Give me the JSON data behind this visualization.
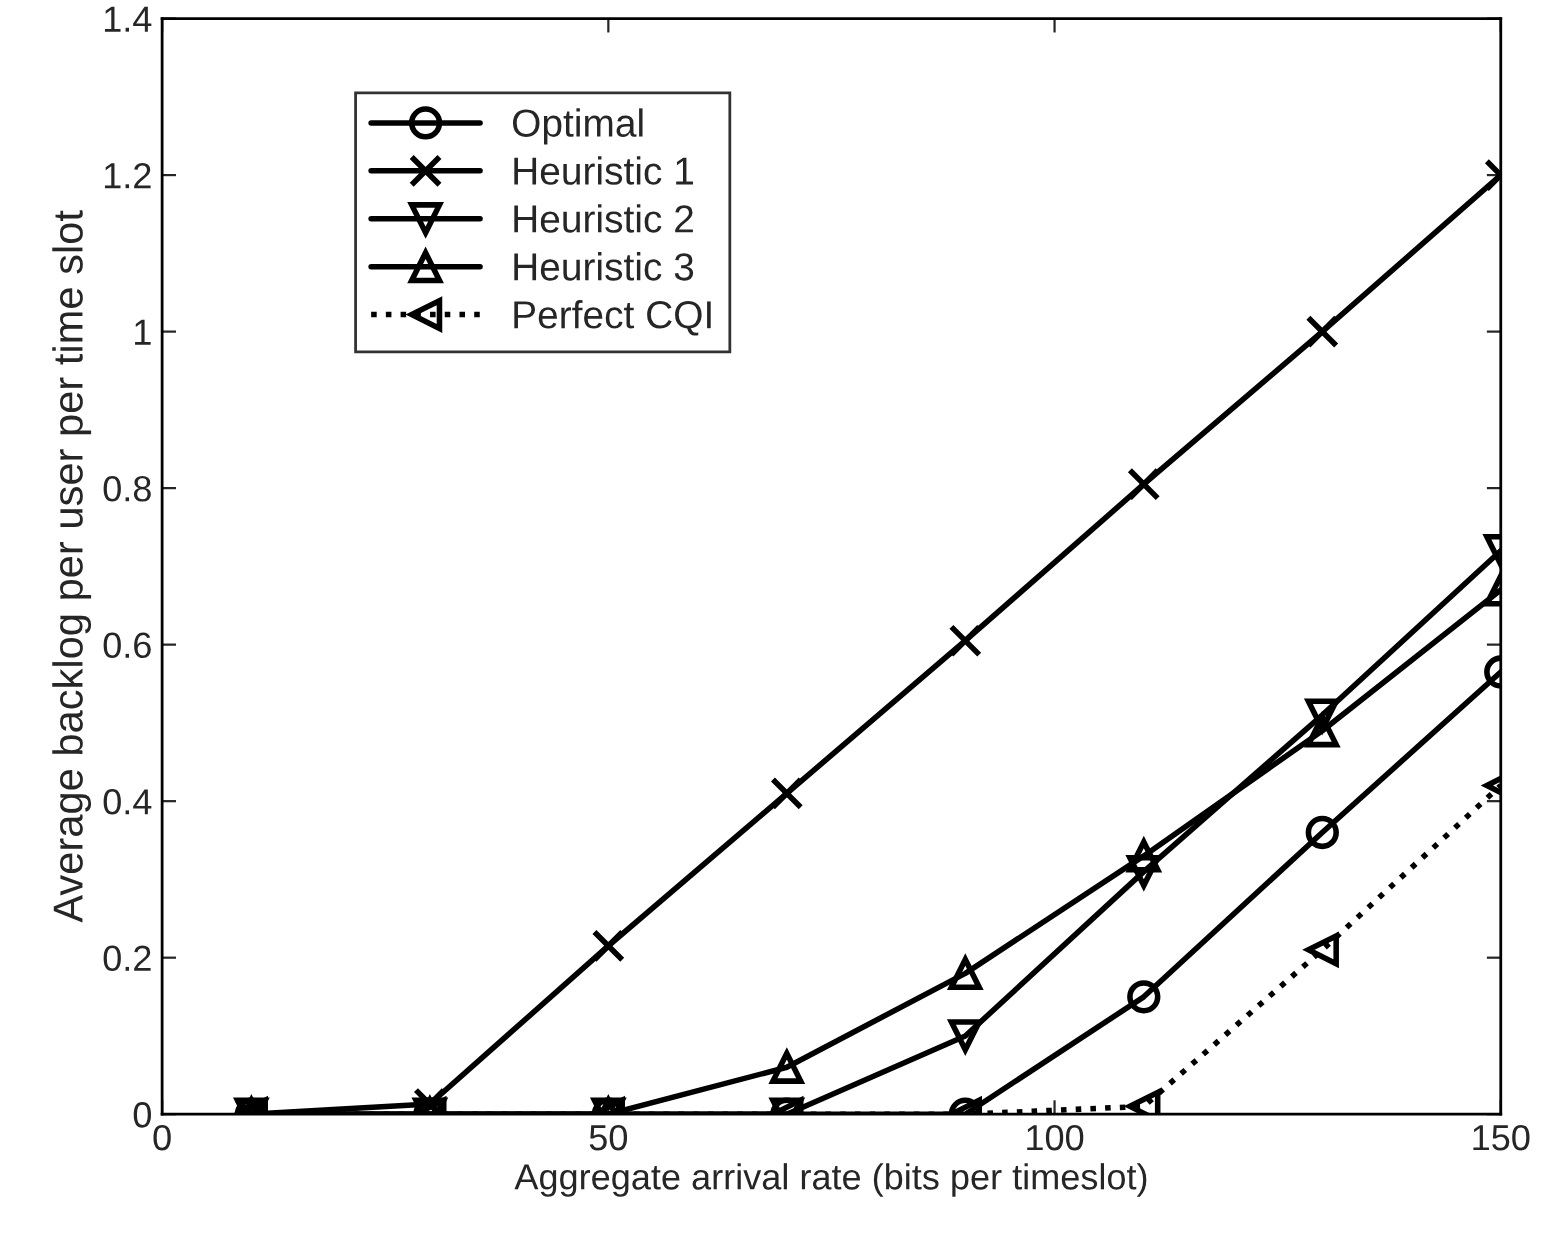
{
  "chart_data": {
    "type": "line",
    "xlabel": "Aggregate arrival rate (bits per timeslot)",
    "ylabel": "Average backlog per user per time slot",
    "x": [
      10,
      30,
      50,
      70,
      90,
      110,
      130,
      150
    ],
    "series": [
      {
        "name": "Optimal",
        "color": "#000000",
        "marker": "circle",
        "line_style": "solid",
        "values": [
          0,
          0,
          0,
          0,
          0,
          0.15,
          0.36,
          0.565
        ]
      },
      {
        "name": "Heuristic 1",
        "color": "#000000",
        "marker": "cross",
        "line_style": "solid",
        "values": [
          0,
          0.013,
          0.215,
          0.41,
          0.605,
          0.805,
          1.0,
          1.2
        ]
      },
      {
        "name": "Heuristic 2",
        "color": "#000000",
        "marker": "triangle-down",
        "line_style": "solid",
        "values": [
          0,
          0,
          0,
          0,
          0.1,
          0.31,
          0.51,
          0.72
        ]
      },
      {
        "name": "Heuristic 3",
        "color": "#000000",
        "marker": "triangle-up",
        "line_style": "solid",
        "values": [
          0,
          0,
          0,
          0.06,
          0.18,
          0.33,
          0.49,
          0.67
        ]
      },
      {
        "name": "Perfect CQI",
        "color": "#000000",
        "marker": "triangle-left",
        "line_style": "dotted",
        "values": [
          0,
          0,
          0,
          0,
          0,
          0.01,
          0.21,
          0.42
        ]
      }
    ],
    "xlim": [
      0,
      150
    ],
    "xticks": [
      0,
      50,
      100,
      150
    ],
    "ylim": [
      0,
      1.4
    ],
    "yticks": [
      0,
      0.2,
      0.4,
      0.6,
      0.8,
      1,
      1.2,
      1.4
    ],
    "grid": false,
    "legend": "top left"
  }
}
